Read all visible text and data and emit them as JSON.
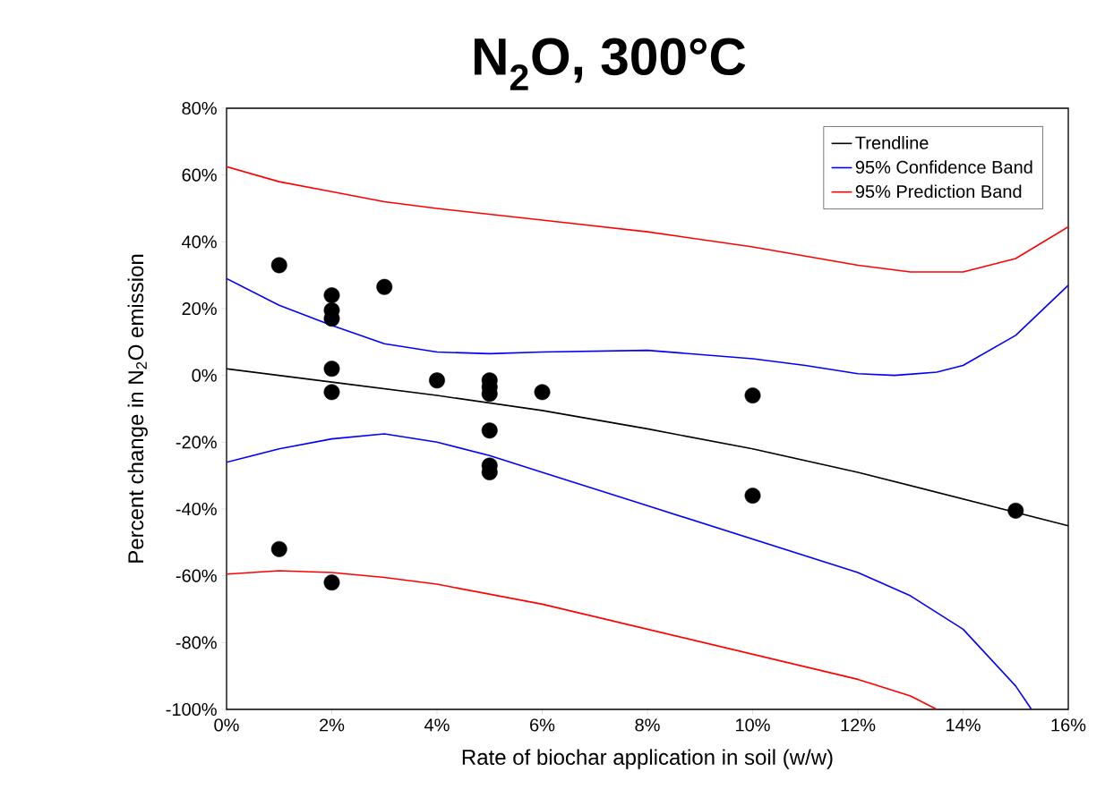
{
  "chart_data": {
    "type": "scatter",
    "title": "N$_{2}$O, 300°C",
    "xlabel": "Rate of biochar application in soil (w/w)",
    "ylabel": "Percent change in N$_{2}$O emission",
    "xlim": [
      0,
      16
    ],
    "ylim": [
      -100,
      80
    ],
    "xticks": [
      {
        "value": 0,
        "label": "0%"
      },
      {
        "value": 2,
        "label": "2%"
      },
      {
        "value": 4,
        "label": "4%"
      },
      {
        "value": 6,
        "label": "6%"
      },
      {
        "value": 8,
        "label": "8%"
      },
      {
        "value": 10,
        "label": "10%"
      },
      {
        "value": 12,
        "label": "12%"
      },
      {
        "value": 14,
        "label": "14%"
      },
      {
        "value": 16,
        "label": "16%"
      }
    ],
    "yticks": [
      {
        "value": -100,
        "label": "-100%"
      },
      {
        "value": -80,
        "label": "-80%"
      },
      {
        "value": -60,
        "label": "-60%"
      },
      {
        "value": -40,
        "label": "-40%"
      },
      {
        "value": -20,
        "label": "-20%"
      },
      {
        "value": 0,
        "label": "0%"
      },
      {
        "value": 20,
        "label": "20%"
      },
      {
        "value": 40,
        "label": "40%"
      },
      {
        "value": 60,
        "label": "60%"
      },
      {
        "value": 80,
        "label": "80%"
      }
    ],
    "grid": false,
    "legend": "top right",
    "series": [
      {
        "color": "#000000",
        "marker": "circle",
        "x": [
          1,
          1,
          2,
          2,
          2,
          2,
          2,
          2,
          3,
          4,
          5,
          5,
          5,
          5,
          5,
          5,
          6,
          10,
          10,
          15
        ],
        "values": [
          33,
          -52,
          24,
          19.5,
          17,
          2,
          -5,
          -62,
          26.5,
          -1.5,
          -1.5,
          -3.5,
          -5.5,
          -16.5,
          -27,
          -29,
          -5,
          -6,
          -36,
          -40.5
        ]
      },
      {
        "type": "line",
        "name": "Trendline",
        "color": "#000000",
        "line_style": "solid",
        "marker": "none",
        "x": [
          0,
          2,
          4,
          6,
          8,
          10,
          12,
          14,
          16
        ],
        "values": [
          2,
          -2,
          -6,
          -10.5,
          -16,
          -22,
          -29,
          -37,
          -45
        ]
      },
      {
        "type": "line",
        "name": "95% Confidence Band",
        "color": "#0000ff",
        "line_style": "solid",
        "marker": "none",
        "x": [
          0,
          1,
          2,
          3,
          4,
          5,
          6,
          8,
          10,
          11,
          12,
          12.7,
          13.5,
          14,
          15,
          16
        ],
        "values": [
          29,
          21,
          15,
          9.5,
          7,
          6.5,
          7,
          7.5,
          5,
          3,
          0.5,
          0,
          1,
          3,
          12,
          27
        ]
      },
      {
        "type": "line",
        "color": "#0000ff",
        "line_style": "solid",
        "marker": "none",
        "x": [
          0,
          1,
          2,
          3,
          4,
          5,
          6,
          8,
          10,
          12,
          13,
          14,
          15,
          15.3
        ],
        "values": [
          -26,
          -22,
          -19,
          -17.5,
          -20,
          -24,
          -29,
          -39,
          -49,
          -59,
          -66,
          -76,
          -93,
          -100
        ]
      },
      {
        "type": "line",
        "name": "95% Prediction Band",
        "color": "#ff0000",
        "line_style": "solid",
        "marker": "none",
        "x": [
          0,
          1,
          2,
          3,
          4,
          6,
          8,
          10,
          12,
          13,
          14,
          15,
          16
        ],
        "values": [
          62.5,
          58,
          55,
          52,
          50,
          46.5,
          43,
          38.5,
          33,
          31,
          31,
          35,
          44.5
        ]
      },
      {
        "type": "line",
        "color": "#ff0000",
        "line_style": "solid",
        "marker": "none",
        "x": [
          0,
          1,
          2,
          3,
          4,
          6,
          8,
          10,
          12,
          13,
          13.5
        ],
        "values": [
          -59.5,
          -58.5,
          -59,
          -60.5,
          -62.5,
          -68.5,
          -76,
          -83.5,
          -91,
          -96,
          -100
        ]
      }
    ]
  }
}
